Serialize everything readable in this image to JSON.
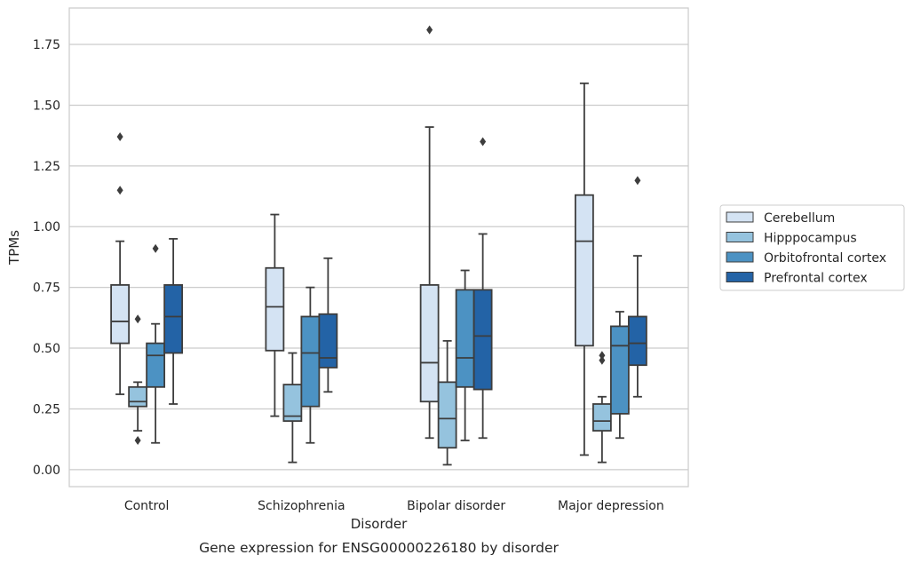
{
  "chart_data": {
    "type": "box",
    "caption": "Gene expression for ENSG00000226180 by disorder",
    "xlabel": "Disorder",
    "ylabel": "TPMs",
    "ylim": [
      -0.07,
      1.9
    ],
    "yticks": [
      "0.00",
      "0.25",
      "0.50",
      "0.75",
      "1.00",
      "1.25",
      "1.50",
      "1.75"
    ],
    "grid": true,
    "legend_position": "right",
    "categories": [
      "Control",
      "Schizophrenia",
      "Bipolar disorder",
      "Major depression"
    ],
    "series": [
      {
        "name": "Cerebellum",
        "color": "#d4e3f3",
        "boxes": [
          {
            "whislo": 0.31,
            "q1": 0.52,
            "med": 0.61,
            "q3": 0.76,
            "whishi": 0.94,
            "fliers": [
              1.15,
              1.37
            ]
          },
          {
            "whislo": 0.22,
            "q1": 0.49,
            "med": 0.67,
            "q3": 0.83,
            "whishi": 1.05,
            "fliers": []
          },
          {
            "whislo": 0.13,
            "q1": 0.28,
            "med": 0.44,
            "q3": 0.76,
            "whishi": 1.41,
            "fliers": [
              1.81
            ]
          },
          {
            "whislo": 0.06,
            "q1": 0.51,
            "med": 0.94,
            "q3": 1.13,
            "whishi": 1.59,
            "fliers": []
          }
        ]
      },
      {
        "name": "Hipppocampus",
        "color": "#95c3de",
        "boxes": [
          {
            "whislo": 0.16,
            "q1": 0.26,
            "med": 0.28,
            "q3": 0.34,
            "whishi": 0.36,
            "fliers": [
              0.12,
              0.62
            ]
          },
          {
            "whislo": 0.03,
            "q1": 0.2,
            "med": 0.22,
            "q3": 0.35,
            "whishi": 0.48,
            "fliers": []
          },
          {
            "whislo": 0.02,
            "q1": 0.09,
            "med": 0.21,
            "q3": 0.36,
            "whishi": 0.53,
            "fliers": []
          },
          {
            "whislo": 0.03,
            "q1": 0.16,
            "med": 0.2,
            "q3": 0.27,
            "whishi": 0.3,
            "fliers": [
              0.45,
              0.47
            ]
          }
        ]
      },
      {
        "name": "Orbitofrontal cortex",
        "color": "#4c92c3",
        "boxes": [
          {
            "whislo": 0.11,
            "q1": 0.34,
            "med": 0.47,
            "q3": 0.52,
            "whishi": 0.6,
            "fliers": [
              0.91
            ]
          },
          {
            "whislo": 0.11,
            "q1": 0.26,
            "med": 0.48,
            "q3": 0.63,
            "whishi": 0.75,
            "fliers": []
          },
          {
            "whislo": 0.12,
            "q1": 0.34,
            "med": 0.46,
            "q3": 0.74,
            "whishi": 0.82,
            "fliers": []
          },
          {
            "whislo": 0.13,
            "q1": 0.23,
            "med": 0.51,
            "q3": 0.59,
            "whishi": 0.65,
            "fliers": []
          }
        ]
      },
      {
        "name": "Prefrontal cortex",
        "color": "#2363a6",
        "boxes": [
          {
            "whislo": 0.27,
            "q1": 0.48,
            "med": 0.63,
            "q3": 0.76,
            "whishi": 0.95,
            "fliers": []
          },
          {
            "whislo": 0.32,
            "q1": 0.42,
            "med": 0.46,
            "q3": 0.64,
            "whishi": 0.87,
            "fliers": []
          },
          {
            "whislo": 0.13,
            "q1": 0.33,
            "med": 0.55,
            "q3": 0.74,
            "whishi": 0.97,
            "fliers": [
              1.35
            ]
          },
          {
            "whislo": 0.3,
            "q1": 0.43,
            "med": 0.52,
            "q3": 0.63,
            "whishi": 0.88,
            "fliers": [
              1.19
            ]
          }
        ]
      }
    ]
  }
}
